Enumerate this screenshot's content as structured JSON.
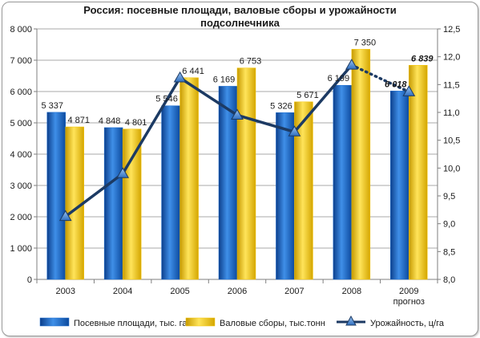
{
  "chart_data": {
    "type": "bar",
    "title_line1": "Россия: посевные площади, валовые сборы и урожайности",
    "title_line2": "подсолнечника",
    "categories": [
      "2003",
      "2004",
      "2005",
      "2006",
      "2007",
      "2008",
      "2009"
    ],
    "category_sublabels": [
      "",
      "",
      "",
      "",
      "",
      "",
      "прогноз"
    ],
    "y_left_lim": [
      0,
      8000
    ],
    "y_left_ticks": [
      "0",
      "1 000",
      "2 000",
      "3 000",
      "4 000",
      "5 000",
      "6 000",
      "7 000",
      "8 000"
    ],
    "y_right_lim": [
      8.0,
      12.5
    ],
    "y_right_ticks": [
      "8,0",
      "8,5",
      "9,0",
      "9,5",
      "10,0",
      "10,5",
      "11,0",
      "11,5",
      "12,0",
      "12,5"
    ],
    "grid": true,
    "legend_position": "bottom",
    "series": [
      {
        "name": "Посевные площади, тыс. га",
        "axis": "left",
        "kind": "bar",
        "color": "#1f6fd0",
        "values": [
          5337,
          4848,
          5546,
          6169,
          5326,
          6199,
          6018
        ],
        "labels": [
          "5 337",
          "4 848",
          "5 546",
          "6 169",
          "5 326",
          "6 199",
          "6 018"
        ]
      },
      {
        "name": "Валовые сборы, тыс.тонн",
        "axis": "left",
        "kind": "bar",
        "color": "#f5c400",
        "values": [
          4871,
          4801,
          6441,
          6753,
          5671,
          7350,
          6839
        ],
        "labels": [
          "4 871",
          "4 801",
          "6 441",
          "6 753",
          "5 671",
          "7 350",
          "6 839"
        ]
      },
      {
        "name": "Урожайность, ц/га",
        "axis": "right",
        "kind": "line",
        "color": "#1c3a63",
        "marker_color": "#4f8fd6",
        "values": [
          9.13,
          9.9,
          11.62,
          10.95,
          10.65,
          11.85,
          11.37
        ],
        "forecast_from_index": 5
      }
    ]
  }
}
